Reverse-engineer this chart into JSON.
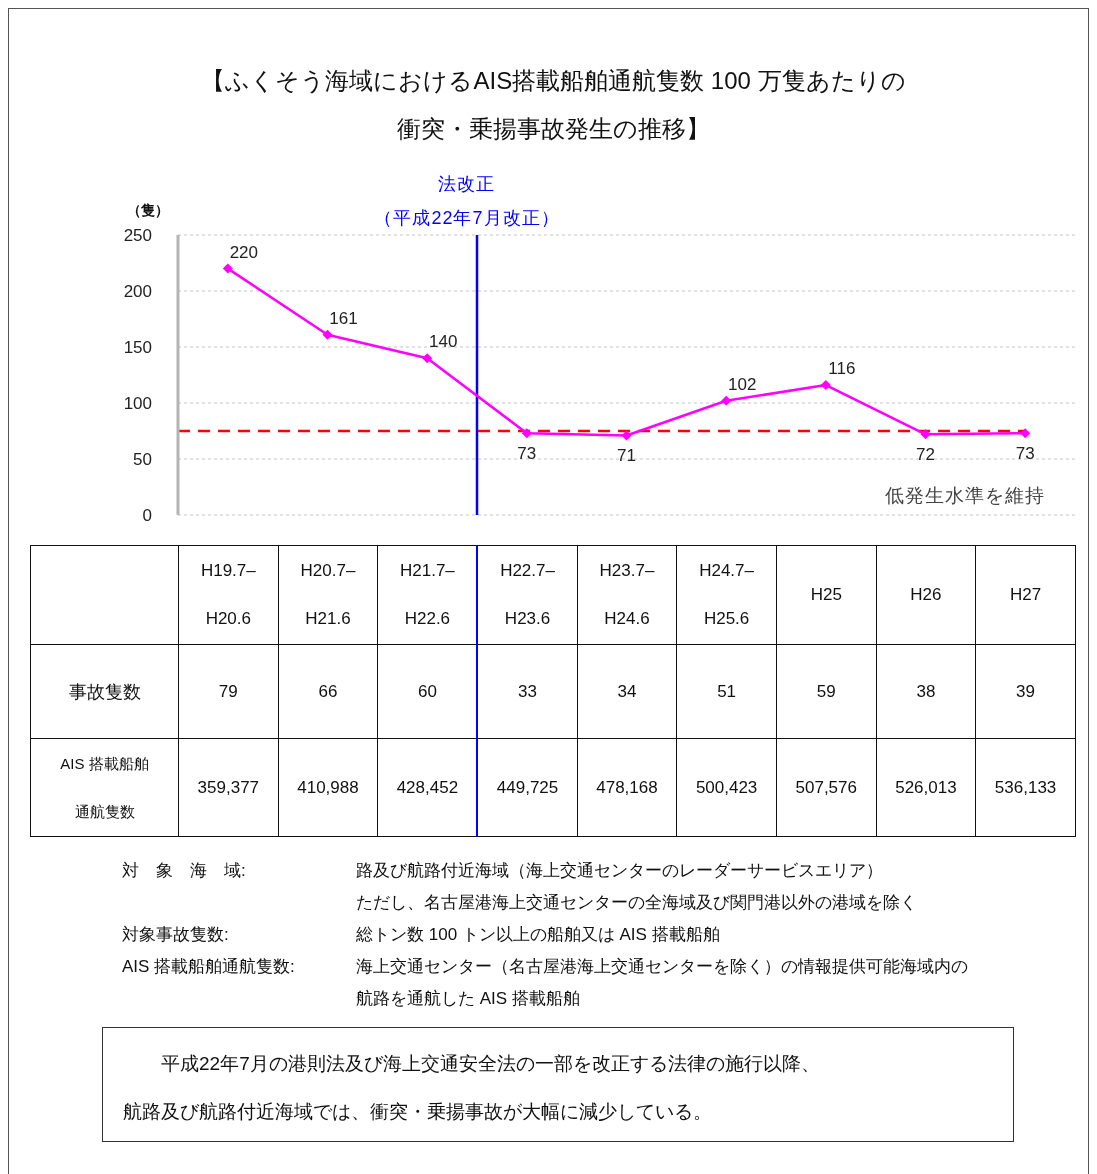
{
  "chart_data": {
    "type": "line",
    "title": "【ふくそう海域におけるAIS搭載船舶通航隻数 100 万隻あたりの衝突・乗揚事故発生の推移】",
    "ylabel": "（隻）",
    "categories": [
      "H19.7–H20.6",
      "H20.7–H21.6",
      "H21.7–H22.6",
      "H22.7–H23.6",
      "H23.7–H24.6",
      "H24.7–H25.6",
      "H25",
      "H26",
      "H27"
    ],
    "series": [
      {
        "color": "#ff00ff",
        "values": [
          220,
          161,
          140,
          73,
          71,
          102,
          116,
          72,
          73
        ]
      }
    ],
    "ylim": [
      0,
      250
    ],
    "yticks": [
      0,
      50,
      100,
      150,
      200,
      250
    ],
    "grid": "y",
    "marker": "diamond",
    "line_style": "solid",
    "data_labels": true,
    "ref_lines": [
      {
        "axis": "x",
        "value": "H22.7–H23.6",
        "label": "法改正（平成22年7月改正）",
        "color": "#0000ff"
      },
      {
        "axis": "y",
        "value": 75,
        "label": "低発生水準を維持",
        "color": "#ff0000",
        "line_style": "dashed"
      }
    ],
    "annotations": [
      "事故隻数\t79\t66\t60\t33\t34\t51\t59\t38\t39",
      "AIS 搭載船舶通航隻数\t359,377\t410,988\t428,452\t449,725\t478,168\t500,423\t507,576\t526,013\t536,133",
      "対　象　海　域:\t路及び航路付近海域（海上交通センターのレーダーサービスエリア）",
      "\tただし、名古屋港海上交通センターの全海域及び関門港以外の港域を除く",
      "対象事故隻数:\t総トン数 100 トン以上の船舶又は AIS 搭載船舶",
      "AIS 搭載船舶通航隻数:\t海上交通センター（名古屋港海上交通センターを除く）の情報提供可能海域内の航路を通航した AIS 搭載船舶",
      "平成22年7月の港則法及び海上交通安全法の一部を改正する法律の施行以降、航路及び航路付近海域では、衝突・乗揚事故が大幅に減少している。"
    ]
  }
}
